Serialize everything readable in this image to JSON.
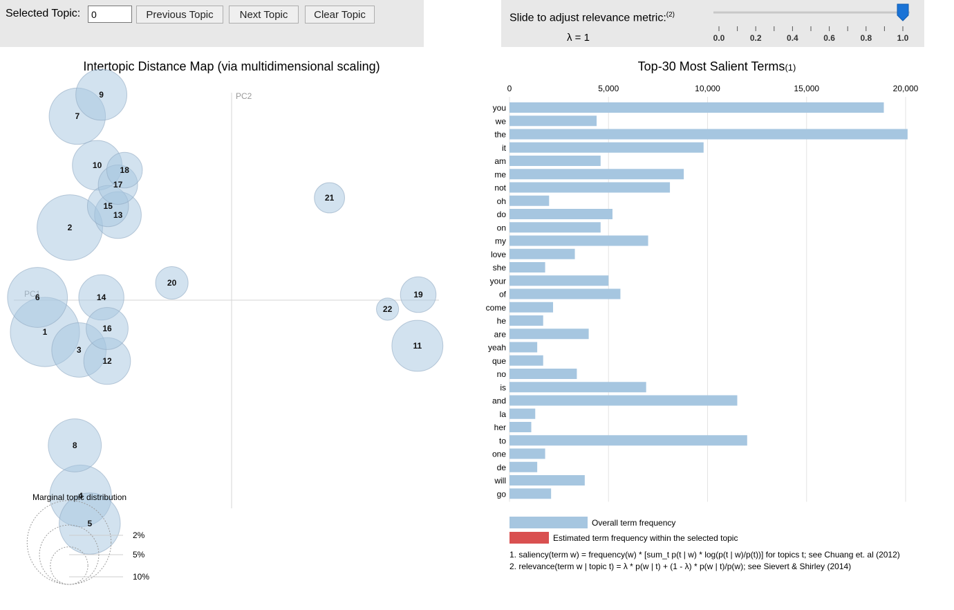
{
  "controls": {
    "selected_topic_label": "Selected Topic:",
    "selected_topic_value": "0",
    "previous_label": "Previous Topic",
    "next_label": "Next Topic",
    "clear_label": "Clear Topic",
    "slider_label": "Slide to adjust relevance metric:",
    "slider_footnote_mark": "(2)",
    "lambda_readout": "λ = 1",
    "lambda_value": 1.0,
    "slider_ticks": [
      "0.0",
      "0.2",
      "0.4",
      "0.6",
      "0.8",
      "1.0"
    ]
  },
  "chart_data": [
    {
      "type": "scatter",
      "title": "Intertopic Distance Map (via multidimensional scaling)",
      "xlabel": "PC1",
      "ylabel": "PC2",
      "bubble_color": "#a6c6e0",
      "topics": [
        {
          "id": "1",
          "x": -0.225,
          "y": -0.046,
          "size": 6.8
        },
        {
          "id": "2",
          "x": -0.195,
          "y": 0.105,
          "size": 6.1
        },
        {
          "id": "3",
          "x": -0.184,
          "y": -0.072,
          "size": 4.2
        },
        {
          "id": "4",
          "x": -0.182,
          "y": -0.283,
          "size": 5.4
        },
        {
          "id": "5",
          "x": -0.171,
          "y": -0.323,
          "size": 5.3
        },
        {
          "id": "6",
          "x": -0.234,
          "y": 0.004,
          "size": 5.1
        },
        {
          "id": "7",
          "x": -0.186,
          "y": 0.266,
          "size": 4.5
        },
        {
          "id": "8",
          "x": -0.189,
          "y": -0.21,
          "size": 4.0
        },
        {
          "id": "9",
          "x": -0.157,
          "y": 0.297,
          "size": 3.7
        },
        {
          "id": "10",
          "x": -0.162,
          "y": 0.195,
          "size": 3.5
        },
        {
          "id": "11",
          "x": 0.224,
          "y": -0.066,
          "size": 3.7
        },
        {
          "id": "12",
          "x": -0.15,
          "y": -0.088,
          "size": 3.1
        },
        {
          "id": "13",
          "x": -0.137,
          "y": 0.123,
          "size": 3.1
        },
        {
          "id": "14",
          "x": -0.157,
          "y": 0.004,
          "size": 2.9
        },
        {
          "id": "15",
          "x": -0.149,
          "y": 0.136,
          "size": 2.4
        },
        {
          "id": "16",
          "x": -0.15,
          "y": -0.041,
          "size": 2.5
        },
        {
          "id": "17",
          "x": -0.137,
          "y": 0.167,
          "size": 2.2
        },
        {
          "id": "18",
          "x": -0.129,
          "y": 0.188,
          "size": 1.8
        },
        {
          "id": "19",
          "x": 0.225,
          "y": 0.008,
          "size": 1.8
        },
        {
          "id": "20",
          "x": -0.072,
          "y": 0.025,
          "size": 1.5
        },
        {
          "id": "21",
          "x": 0.118,
          "y": 0.148,
          "size": 1.3
        },
        {
          "id": "22",
          "x": 0.188,
          "y": -0.013,
          "size": 0.7
        }
      ],
      "legend_title": "Marginal topic distribution",
      "legend_items": [
        {
          "label": "2%",
          "value": 2
        },
        {
          "label": "5%",
          "value": 5
        },
        {
          "label": "10%",
          "value": 10
        }
      ]
    },
    {
      "type": "bar",
      "title": "Top-30 Most Salient Terms",
      "title_footnote_mark": "(1)",
      "xlim": [
        0,
        21000
      ],
      "ticks": [
        0,
        5000,
        10000,
        15000,
        20000
      ],
      "tick_labels": [
        "0",
        "5,000",
        "10,000",
        "15,000",
        "20,000"
      ],
      "series": [
        {
          "name": "Overall term frequency",
          "color": "#a6c6e0"
        },
        {
          "name": "Estimated term frequency within the selected topic",
          "color": "#d95050"
        }
      ],
      "categories": [
        "you",
        "we",
        "the",
        "it",
        "am",
        "me",
        "not",
        "oh",
        "do",
        "on",
        "my",
        "love",
        "she",
        "your",
        "of",
        "come",
        "he",
        "are",
        "yeah",
        "que",
        "no",
        "is",
        "and",
        "la",
        "her",
        "to",
        "one",
        "de",
        "will",
        "go"
      ],
      "values": [
        18900,
        4400,
        20100,
        9800,
        4600,
        8800,
        8100,
        2000,
        5200,
        4600,
        7000,
        3300,
        1800,
        5000,
        5600,
        2200,
        1700,
        4000,
        1400,
        1700,
        3400,
        6900,
        11500,
        1300,
        1100,
        12000,
        1800,
        1400,
        3800,
        2100
      ]
    }
  ],
  "footnotes": {
    "note1": "1. saliency(term w) = frequency(w) * [sum_t p(t | w) * log(p(t | w)/p(t))] for topics t; see Chuang et. al (2012)",
    "note2": "2. relevance(term w | topic t) = λ * p(w | t) + (1 - λ) * p(w | t)/p(w); see Sievert & Shirley (2014)"
  }
}
